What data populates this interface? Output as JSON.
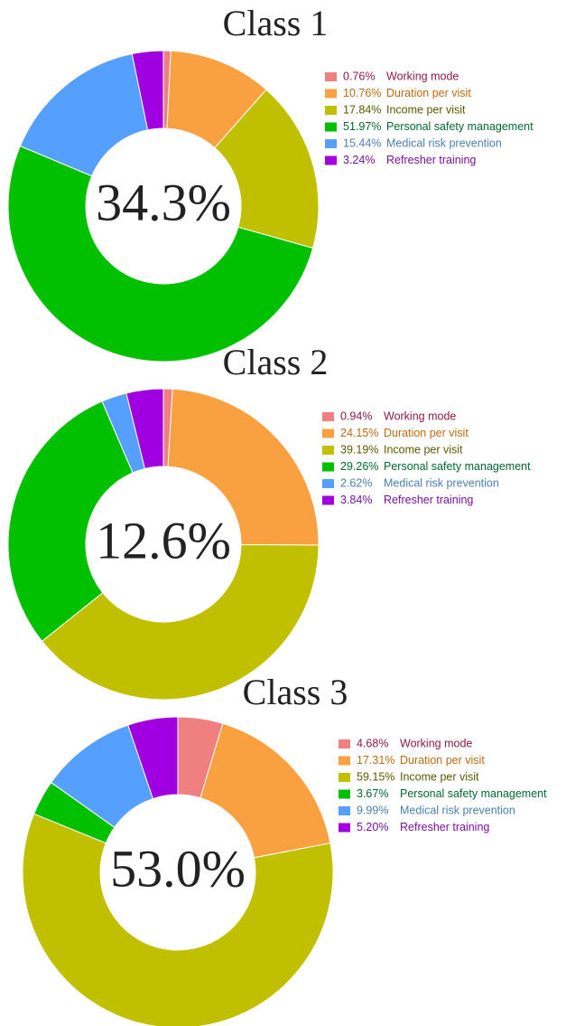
{
  "chart_data": [
    {
      "type": "pie",
      "title": "Class 1",
      "center_label": "34.3%",
      "categories": [
        "Working mode",
        "Duration per visit",
        "Income per visit",
        "Personal safety management",
        "Medical risk prevention",
        "Refresher training"
      ],
      "values": [
        0.76,
        10.76,
        17.84,
        51.97,
        15.44,
        3.24
      ],
      "value_labels": [
        "0.76%",
        "10.76%",
        "17.84%",
        "51.97%",
        "15.44%",
        "3.24%"
      ],
      "colors": [
        "#f08080",
        "#f9a040",
        "#c0c000",
        "#00c000",
        "#55a0ff",
        "#a000e0"
      ],
      "label_colors": [
        "#8b1a4a",
        "#c06a10",
        "#5a5a00",
        "#006a30",
        "#4a80b0",
        "#7a10a0"
      ]
    },
    {
      "type": "pie",
      "title": "Class 2",
      "center_label": "12.6%",
      "categories": [
        "Working mode",
        "Duration per visit",
        "Income per visit",
        "Personal safety management",
        "Medical risk prevention",
        "Refresher training"
      ],
      "values": [
        0.94,
        24.15,
        39.19,
        29.26,
        2.62,
        3.84
      ],
      "value_labels": [
        "0.94%",
        "24.15%",
        "39.19%",
        "29.26%",
        "2.62%",
        "3.84%"
      ],
      "colors": [
        "#f08080",
        "#f9a040",
        "#c0c000",
        "#00c000",
        "#55a0ff",
        "#a000e0"
      ],
      "label_colors": [
        "#8b1a4a",
        "#c06a10",
        "#5a5a00",
        "#006a30",
        "#4a80b0",
        "#7a10a0"
      ]
    },
    {
      "type": "pie",
      "title": "Class 3",
      "center_label": "53.0%",
      "categories": [
        "Working mode",
        "Duration per visit",
        "Income per visit",
        "Personal safety management",
        "Medical risk prevention",
        "Refresher training"
      ],
      "values": [
        4.68,
        17.31,
        59.15,
        3.67,
        9.99,
        5.2
      ],
      "value_labels": [
        "4.68%",
        "17.31%",
        "59.15%",
        "3.67%",
        "9.99%",
        "5.20%"
      ],
      "colors": [
        "#f08080",
        "#f9a040",
        "#c0c000",
        "#00c000",
        "#55a0ff",
        "#a000e0"
      ],
      "label_colors": [
        "#8b1a4a",
        "#c06a10",
        "#5a5a00",
        "#006a30",
        "#4a80b0",
        "#7a10a0"
      ]
    }
  ]
}
